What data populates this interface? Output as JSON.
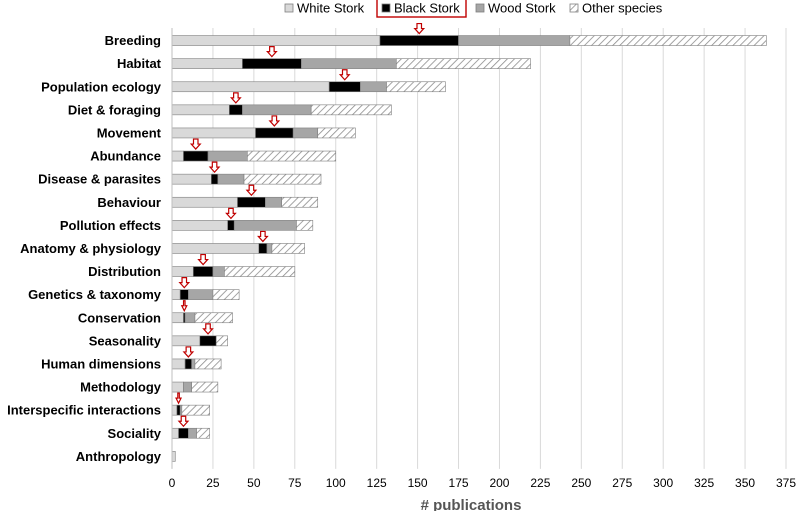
{
  "chart_data": {
    "type": "bar",
    "orientation": "horizontal",
    "stacked": true,
    "xlabel": "# publications",
    "ylabel": "",
    "xlim": [
      0,
      375
    ],
    "xticks": [
      0,
      25,
      50,
      75,
      100,
      125,
      150,
      175,
      200,
      225,
      250,
      275,
      300,
      325,
      350,
      375
    ],
    "grid": "vertical",
    "legend_position": "top",
    "categories": [
      "Breeding",
      "Habitat",
      "Population ecology",
      "Diet & foraging",
      "Movement",
      "Abundance",
      "Disease & parasites",
      "Behaviour",
      "Pollution effects",
      "Anatomy & physiology",
      "Distribution",
      "Genetics & taxonomy",
      "Conservation",
      "Seasonality",
      "Human dimensions",
      "Methodology",
      "Interspecific interactions",
      "Sociality",
      "Anthropology"
    ],
    "series": [
      {
        "name": "White Stork",
        "color": "#d9d9d9",
        "pattern": "solid",
        "values": [
          127,
          43,
          96,
          35,
          51,
          7,
          24,
          40,
          34,
          53,
          13,
          5,
          7,
          17,
          8,
          7,
          3,
          4,
          2
        ]
      },
      {
        "name": "Black Stork",
        "color": "#000000",
        "pattern": "solid",
        "values": [
          48,
          36,
          19,
          8,
          23,
          15,
          4,
          17,
          4,
          5,
          12,
          5,
          1,
          10,
          4,
          0,
          2,
          6,
          0
        ]
      },
      {
        "name": "Wood Stork",
        "color": "#a6a6a6",
        "pattern": "solid",
        "values": [
          68,
          58,
          16,
          42,
          15,
          24,
          16,
          10,
          38,
          3,
          7,
          15,
          6,
          0,
          2,
          5,
          1,
          5,
          0
        ]
      },
      {
        "name": "Other species",
        "color": "#ffffff",
        "pattern": "hatched",
        "values": [
          120,
          82,
          36,
          49,
          23,
          54,
          47,
          22,
          10,
          20,
          43,
          16,
          23,
          7,
          16,
          16,
          17,
          8,
          0
        ]
      }
    ],
    "highlighted_series": "Black Stork",
    "highlight_marker": "down-arrow",
    "highlight_color": "#c00000"
  }
}
